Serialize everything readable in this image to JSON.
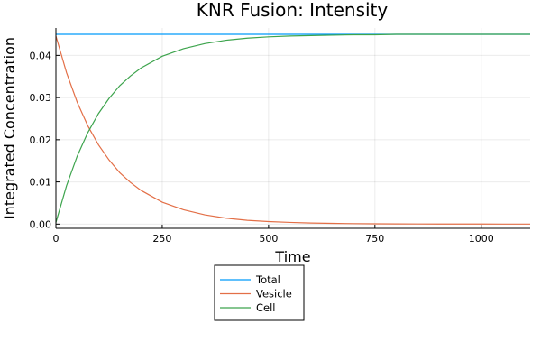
{
  "chart_data": {
    "type": "line",
    "title": "KNR Fusion: Intensity",
    "xlabel": "Time",
    "ylabel": "Integrated Concentration",
    "xlim": [
      0,
      1115
    ],
    "ylim": [
      -0.001,
      0.0465
    ],
    "xticks": [
      0,
      250,
      500,
      750,
      1000
    ],
    "xtick_labels": [
      "0",
      "250",
      "500",
      "750",
      "1000"
    ],
    "yticks": [
      0.0,
      0.01,
      0.02,
      0.03,
      0.04
    ],
    "ytick_labels": [
      "0.00",
      "0.01",
      "0.02",
      "0.03",
      "0.04"
    ],
    "grid": true,
    "legend_position": "bottom-center-outside",
    "x": [
      0,
      25,
      50,
      75,
      100,
      125,
      150,
      175,
      200,
      250,
      300,
      350,
      400,
      450,
      500,
      550,
      600,
      650,
      700,
      750,
      800,
      850,
      900,
      950,
      1000,
      1050,
      1115
    ],
    "series": [
      {
        "name": "Total",
        "color": "#009AFA",
        "values": [
          0.045,
          0.045,
          0.045,
          0.045,
          0.045,
          0.045,
          0.045,
          0.045,
          0.045,
          0.045,
          0.045,
          0.045,
          0.045,
          0.045,
          0.045,
          0.045,
          0.045,
          0.045,
          0.045,
          0.045,
          0.045,
          0.045,
          0.045,
          0.045,
          0.045,
          0.045,
          0.045
        ]
      },
      {
        "name": "Vesicle",
        "color": "#E36F47",
        "values": [
          0.0446,
          0.0359,
          0.0289,
          0.0233,
          0.0188,
          0.0152,
          0.0122,
          0.0099,
          0.008,
          0.0052,
          0.0034,
          0.0022,
          0.0014,
          0.0009,
          0.0006,
          0.0004,
          0.00026,
          0.00017,
          0.00011,
          7e-05,
          5e-05,
          3e-05,
          2e-05,
          1e-05,
          1e-05,
          0.0,
          0.0
        ]
      },
      {
        "name": "Cell",
        "color": "#3DA44D",
        "values": [
          0.0004,
          0.0091,
          0.0161,
          0.0217,
          0.0262,
          0.0298,
          0.0328,
          0.0351,
          0.037,
          0.0398,
          0.0416,
          0.0428,
          0.0436,
          0.0441,
          0.0444,
          0.0446,
          0.0447,
          0.0448,
          0.0449,
          0.0449,
          0.045,
          0.045,
          0.045,
          0.045,
          0.045,
          0.045,
          0.045
        ]
      }
    ]
  }
}
